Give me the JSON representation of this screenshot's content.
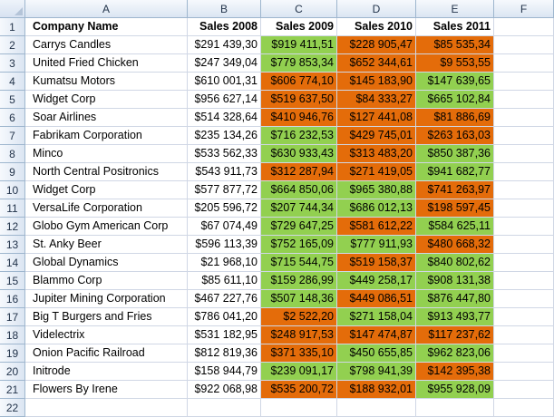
{
  "colors": {
    "good": "#92d050",
    "bad": "#e46c0a",
    "grid": "#d0d7e5",
    "header_bg": "#dbe5f2"
  },
  "columns": [
    "A",
    "B",
    "C",
    "D",
    "E",
    "F"
  ],
  "row_numbers": [
    "1",
    "2",
    "3",
    "4",
    "5",
    "6",
    "7",
    "8",
    "9",
    "10",
    "11",
    "12",
    "13",
    "14",
    "15",
    "16",
    "17",
    "18",
    "19",
    "20",
    "21",
    "22"
  ],
  "headers": [
    "Company Name",
    "Sales 2008",
    "Sales 2009",
    "Sales 2010",
    "Sales 2011"
  ],
  "rows": [
    {
      "company": "Carrys Candles",
      "s2008": "$291 439,30",
      "s2009": {
        "v": "$919 411,51",
        "c": "green"
      },
      "s2010": {
        "v": "$228 905,47",
        "c": "orange"
      },
      "s2011": {
        "v": "$85 535,34",
        "c": "orange"
      }
    },
    {
      "company": "United Fried Chicken",
      "s2008": "$247 349,04",
      "s2009": {
        "v": "$779 853,34",
        "c": "green"
      },
      "s2010": {
        "v": "$652 344,61",
        "c": "orange"
      },
      "s2011": {
        "v": "$9 553,55",
        "c": "orange"
      }
    },
    {
      "company": "Kumatsu Motors",
      "s2008": "$610 001,31",
      "s2009": {
        "v": "$606 774,10",
        "c": "orange"
      },
      "s2010": {
        "v": "$145 183,90",
        "c": "orange"
      },
      "s2011": {
        "v": "$147 639,65",
        "c": "green"
      }
    },
    {
      "company": "Widget Corp",
      "s2008": "$956 627,14",
      "s2009": {
        "v": "$519 637,50",
        "c": "orange"
      },
      "s2010": {
        "v": "$84 333,27",
        "c": "orange"
      },
      "s2011": {
        "v": "$665 102,84",
        "c": "green"
      }
    },
    {
      "company": "Soar Airlines",
      "s2008": "$514 328,64",
      "s2009": {
        "v": "$410 946,76",
        "c": "orange"
      },
      "s2010": {
        "v": "$127 441,08",
        "c": "orange"
      },
      "s2011": {
        "v": "$81 886,69",
        "c": "orange"
      }
    },
    {
      "company": "Fabrikam Corporation",
      "s2008": "$235 134,26",
      "s2009": {
        "v": "$716 232,53",
        "c": "green"
      },
      "s2010": {
        "v": "$429 745,01",
        "c": "orange"
      },
      "s2011": {
        "v": "$263 163,03",
        "c": "orange"
      }
    },
    {
      "company": "Minco",
      "s2008": "$533 562,33",
      "s2009": {
        "v": "$630 933,43",
        "c": "green"
      },
      "s2010": {
        "v": "$313 483,20",
        "c": "orange"
      },
      "s2011": {
        "v": "$850 387,36",
        "c": "green"
      }
    },
    {
      "company": "North Central Positronics",
      "s2008": "$543 911,73",
      "s2009": {
        "v": "$312 287,94",
        "c": "orange"
      },
      "s2010": {
        "v": "$271 419,05",
        "c": "orange"
      },
      "s2011": {
        "v": "$941 682,77",
        "c": "green"
      }
    },
    {
      "company": "Widget Corp",
      "s2008": "$577 877,72",
      "s2009": {
        "v": "$664 850,06",
        "c": "green"
      },
      "s2010": {
        "v": "$965 380,88",
        "c": "green"
      },
      "s2011": {
        "v": "$741 263,97",
        "c": "orange"
      }
    },
    {
      "company": "VersaLife Corporation",
      "s2008": "$205 596,72",
      "s2009": {
        "v": "$207 744,34",
        "c": "green"
      },
      "s2010": {
        "v": "$686 012,13",
        "c": "green"
      },
      "s2011": {
        "v": "$198 597,45",
        "c": "orange"
      }
    },
    {
      "company": "Globo Gym American Corp",
      "s2008": "$67 074,49",
      "s2009": {
        "v": "$729 647,25",
        "c": "green"
      },
      "s2010": {
        "v": "$581 612,22",
        "c": "orange"
      },
      "s2011": {
        "v": "$584 625,11",
        "c": "green"
      }
    },
    {
      "company": "St. Anky Beer",
      "s2008": "$596 113,39",
      "s2009": {
        "v": "$752 165,09",
        "c": "green"
      },
      "s2010": {
        "v": "$777 911,93",
        "c": "green"
      },
      "s2011": {
        "v": "$480 668,32",
        "c": "orange"
      }
    },
    {
      "company": "Global Dynamics",
      "s2008": "$21 968,10",
      "s2009": {
        "v": "$715 544,75",
        "c": "green"
      },
      "s2010": {
        "v": "$519 158,37",
        "c": "orange"
      },
      "s2011": {
        "v": "$840 802,62",
        "c": "green"
      }
    },
    {
      "company": "Blammo Corp",
      "s2008": "$85 611,10",
      "s2009": {
        "v": "$159 286,99",
        "c": "green"
      },
      "s2010": {
        "v": "$449 258,17",
        "c": "green"
      },
      "s2011": {
        "v": "$908 131,38",
        "c": "green"
      }
    },
    {
      "company": "Jupiter Mining Corporation",
      "s2008": "$467 227,76",
      "s2009": {
        "v": "$507 148,36",
        "c": "green"
      },
      "s2010": {
        "v": "$449 086,51",
        "c": "orange"
      },
      "s2011": {
        "v": "$876 447,80",
        "c": "green"
      }
    },
    {
      "company": "Big T Burgers and Fries",
      "s2008": "$786 041,20",
      "s2009": {
        "v": "$2 522,20",
        "c": "orange"
      },
      "s2010": {
        "v": "$271 158,04",
        "c": "green"
      },
      "s2011": {
        "v": "$913 493,77",
        "c": "green"
      }
    },
    {
      "company": "Videlectrix",
      "s2008": "$531 182,95",
      "s2009": {
        "v": "$248 917,53",
        "c": "orange"
      },
      "s2010": {
        "v": "$147 474,87",
        "c": "orange"
      },
      "s2011": {
        "v": "$117 237,62",
        "c": "orange"
      }
    },
    {
      "company": "Onion Pacific Railroad",
      "s2008": "$812 819,36",
      "s2009": {
        "v": "$371 335,10",
        "c": "orange"
      },
      "s2010": {
        "v": "$450 655,85",
        "c": "green"
      },
      "s2011": {
        "v": "$962 823,06",
        "c": "green"
      }
    },
    {
      "company": "Initrode",
      "s2008": "$158 944,79",
      "s2009": {
        "v": "$239 091,17",
        "c": "green"
      },
      "s2010": {
        "v": "$798 941,39",
        "c": "green"
      },
      "s2011": {
        "v": "$142 395,38",
        "c": "orange"
      }
    },
    {
      "company": "Flowers By Irene",
      "s2008": "$922 068,98",
      "s2009": {
        "v": "$535 200,72",
        "c": "orange"
      },
      "s2010": {
        "v": "$188 932,01",
        "c": "orange"
      },
      "s2011": {
        "v": "$955 928,09",
        "c": "green"
      }
    }
  ]
}
